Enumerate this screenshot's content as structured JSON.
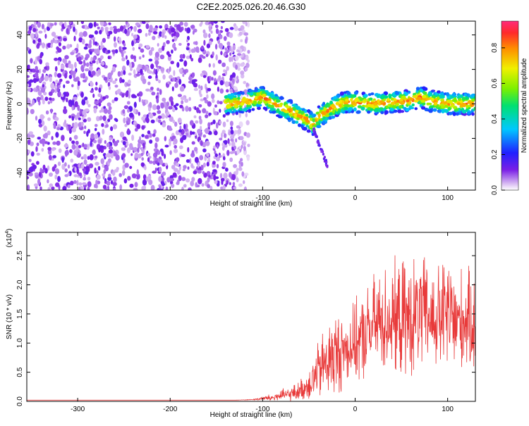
{
  "title": "C2E2.2025.026.20.46.G30",
  "chart_data": [
    {
      "type": "heatmap",
      "xlabel": "Height of straight line (km)",
      "ylabel": "Frequency (Hz)",
      "xlim": [
        -355,
        130
      ],
      "ylim": [
        -50,
        48
      ],
      "x_ticks": [
        -300,
        -200,
        -100,
        0,
        100
      ],
      "y_ticks": [
        -40,
        -20,
        0,
        20,
        40
      ],
      "colorbar": {
        "label": "Normalized spectral amplitude",
        "range": [
          0.0,
          0.95
        ],
        "ticks": [
          0.0,
          0.2,
          0.4,
          0.6,
          0.8
        ],
        "colormap": "rainbow (white-purple-blue-cyan-green-yellow-red-pink)"
      },
      "noise_region": {
        "x": [
          -355,
          -130
        ],
        "amplitude": "low (purple)"
      },
      "signal_ridge": {
        "x": [
          -140,
          -120,
          -100,
          -90,
          -80,
          -70,
          -60,
          -50,
          -45,
          -40,
          -30,
          -20,
          -10,
          0,
          20,
          40,
          60,
          70,
          80,
          100,
          120,
          130
        ],
        "frequency": [
          0,
          1,
          4,
          1,
          -2,
          -4,
          -7,
          -10,
          -12,
          -8,
          -4,
          -1,
          1,
          1,
          0,
          1,
          2,
          4,
          2,
          0,
          0,
          0
        ]
      },
      "tail": {
        "x": [
          -45,
          -40,
          -35,
          -30
        ],
        "frequency": [
          -15,
          -22,
          -29,
          -36
        ]
      }
    },
    {
      "type": "line",
      "xlabel": "Height of straight line (km)",
      "ylabel": "SNR (10 * v/v)",
      "scale_label": "(x10",
      "scale_exponent": "4",
      "xlim": [
        -355,
        130
      ],
      "ylim": [
        0,
        2.9
      ],
      "x_ticks": [
        -300,
        -200,
        -100,
        0,
        100
      ],
      "y_ticks": [
        "0.0",
        "0.5",
        "1.0",
        "1.5",
        "2.0",
        "2.5"
      ],
      "line_color": "#e83a3a",
      "series": [
        {
          "x": [
            -355,
            -200,
            -130,
            -110,
            -100,
            -90,
            -80,
            -70,
            -60,
            -50,
            -40,
            -30,
            -20,
            -10,
            0,
            10,
            20,
            30,
            40,
            50,
            60,
            70,
            80,
            90,
            100,
            110,
            120,
            130
          ],
          "mean": [
            0.02,
            0.02,
            0.02,
            0.03,
            0.05,
            0.06,
            0.1,
            0.12,
            0.18,
            0.3,
            0.5,
            0.7,
            0.8,
            0.9,
            1.0,
            1.1,
            1.3,
            1.4,
            1.4,
            1.4,
            1.4,
            1.5,
            1.45,
            1.4,
            1.5,
            1.35,
            1.4,
            1.3
          ],
          "spread": [
            0.0,
            0.0,
            0.0,
            0.01,
            0.05,
            0.08,
            0.12,
            0.15,
            0.2,
            0.35,
            0.6,
            0.8,
            0.9,
            0.7,
            0.8,
            0.9,
            1.0,
            1.1,
            1.1,
            1.2,
            1.2,
            1.2,
            1.1,
            1.1,
            1.3,
            1.1,
            1.0,
            1.0
          ]
        }
      ]
    }
  ]
}
